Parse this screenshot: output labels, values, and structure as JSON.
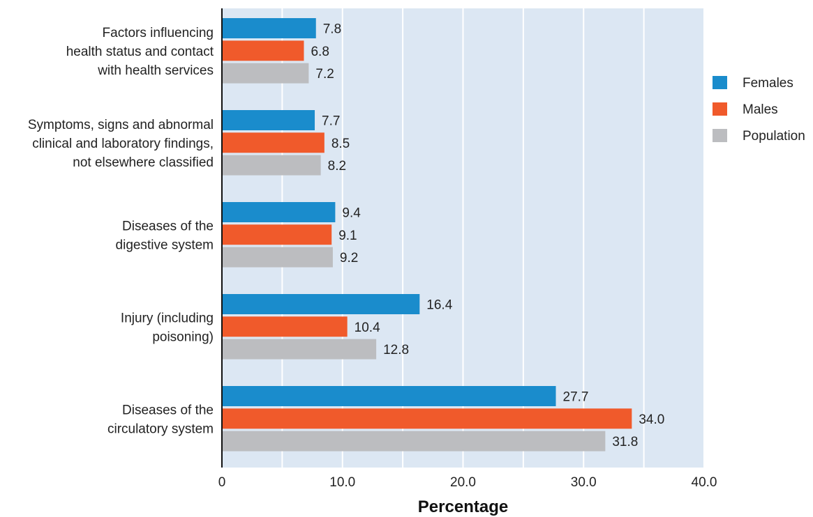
{
  "chart_data": {
    "type": "bar",
    "orientation": "horizontal",
    "categories": [
      [
        "Factors influencing",
        "health status and contact",
        "with health services"
      ],
      [
        "Symptoms, signs and abnormal",
        "clinical and laboratory findings,",
        "not elsewhere classified"
      ],
      [
        "Diseases of the",
        "digestive system"
      ],
      [
        "Injury (including",
        "poisoning)"
      ],
      [
        "Diseases of the",
        "circulatory system"
      ]
    ],
    "series": [
      {
        "name": "Females",
        "color": "#1a8ccc",
        "values": [
          7.8,
          7.7,
          9.4,
          16.4,
          27.7
        ]
      },
      {
        "name": "Males",
        "color": "#f05a2b",
        "values": [
          6.8,
          8.5,
          9.1,
          10.4,
          34.0
        ]
      },
      {
        "name": "Population",
        "color": "#bcbdc0",
        "values": [
          7.2,
          8.2,
          9.2,
          12.8,
          31.8
        ]
      }
    ],
    "value_labels": [
      [
        "7.8",
        "7.7",
        "9.4",
        "16.4",
        "27.7"
      ],
      [
        "6.8",
        "8.5",
        "9.1",
        "10.4",
        "34.0"
      ],
      [
        "7.2",
        "8.2",
        "9.2",
        "12.8",
        "31.8"
      ]
    ],
    "xlabel": "Percentage",
    "xlim": [
      0,
      40
    ],
    "xticks": [
      0,
      10,
      20,
      30,
      40
    ],
    "xtick_labels": [
      "0",
      "10.0",
      "20.0",
      "30.0",
      "40.0"
    ],
    "minor_gridlines": [
      5,
      15,
      25,
      35
    ],
    "grid": true,
    "legend_position": "right",
    "plot_background": "#dce7f3",
    "gridline_color": "#ffffff"
  }
}
